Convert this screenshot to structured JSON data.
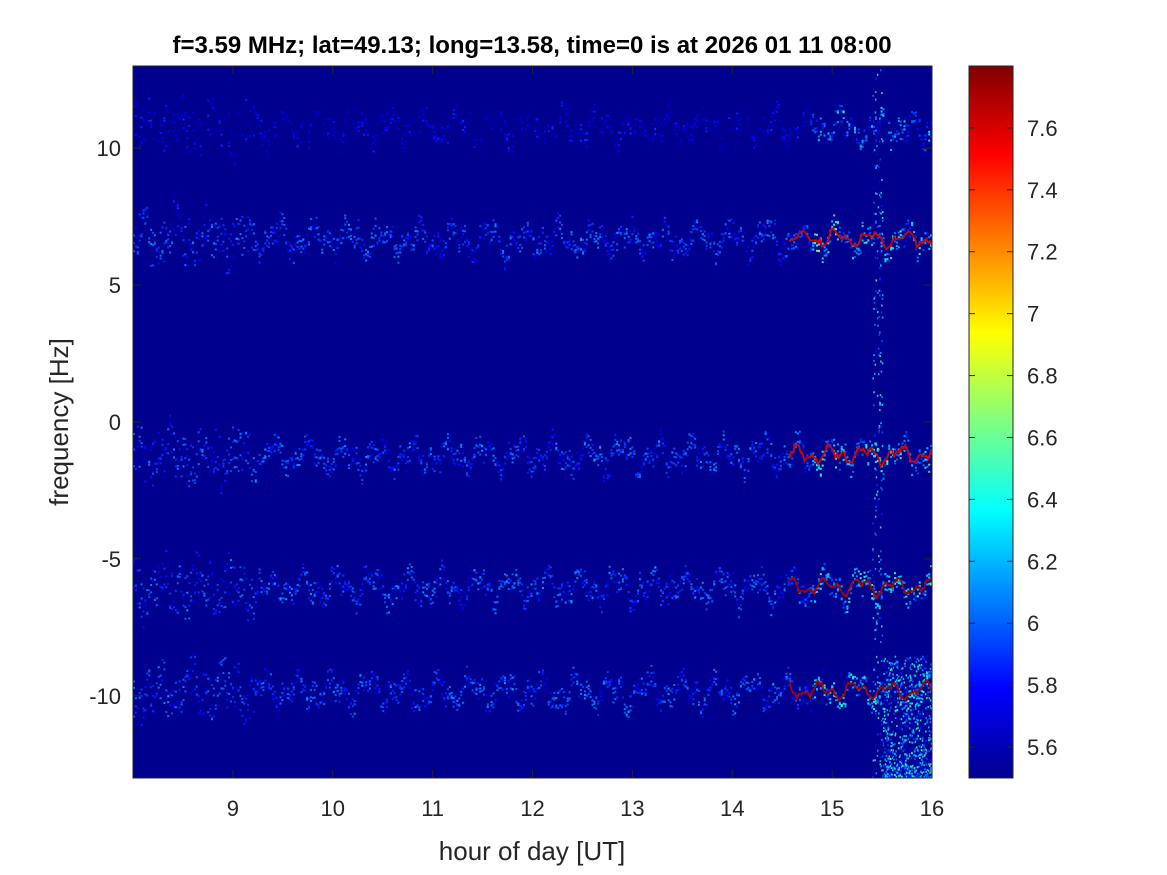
{
  "chart_data": {
    "type": "heatmap",
    "title": "f=3.59 MHz;  lat=49.13; long=13.58, time=0 is at 2026 01 11 08:00",
    "xlabel": "hour of day [UT]",
    "ylabel": "frequency [Hz]",
    "xlim": [
      8,
      16
    ],
    "ylim": [
      -13,
      13
    ],
    "x_ticks": [
      9,
      10,
      11,
      12,
      13,
      14,
      15,
      16
    ],
    "y_ticks": [
      -10,
      -5,
      0,
      5,
      10
    ],
    "colorbar": {
      "lim": [
        5.5,
        7.8
      ],
      "ticks": [
        5.6,
        5.8,
        6,
        6.2,
        6.4,
        6.6,
        6.8,
        7,
        7.2,
        7.4,
        7.6
      ],
      "colormap": "jet"
    },
    "background_color": "#00008f",
    "traces": [
      {
        "center_hz": 10.8,
        "start_hour": 8.0,
        "end_hour": 16.0,
        "peak_value": 6.6
      },
      {
        "center_hz": 6.7,
        "start_hour": 8.0,
        "end_hour": 16.0,
        "peak_value": 7.6
      },
      {
        "center_hz": -1.2,
        "start_hour": 8.0,
        "end_hour": 16.0,
        "peak_value": 7.6
      },
      {
        "center_hz": -6.0,
        "start_hour": 8.0,
        "end_hour": 16.0,
        "peak_value": 7.7
      },
      {
        "center_hz": -9.8,
        "start_hour": 8.0,
        "end_hour": 16.0,
        "peak_value": 7.7
      }
    ],
    "broadband_noise": [
      {
        "start_hour": 15.4,
        "end_hour": 15.5
      },
      {
        "start_hour": 15.5,
        "end_hour": 16.0
      }
    ],
    "grid": false
  }
}
